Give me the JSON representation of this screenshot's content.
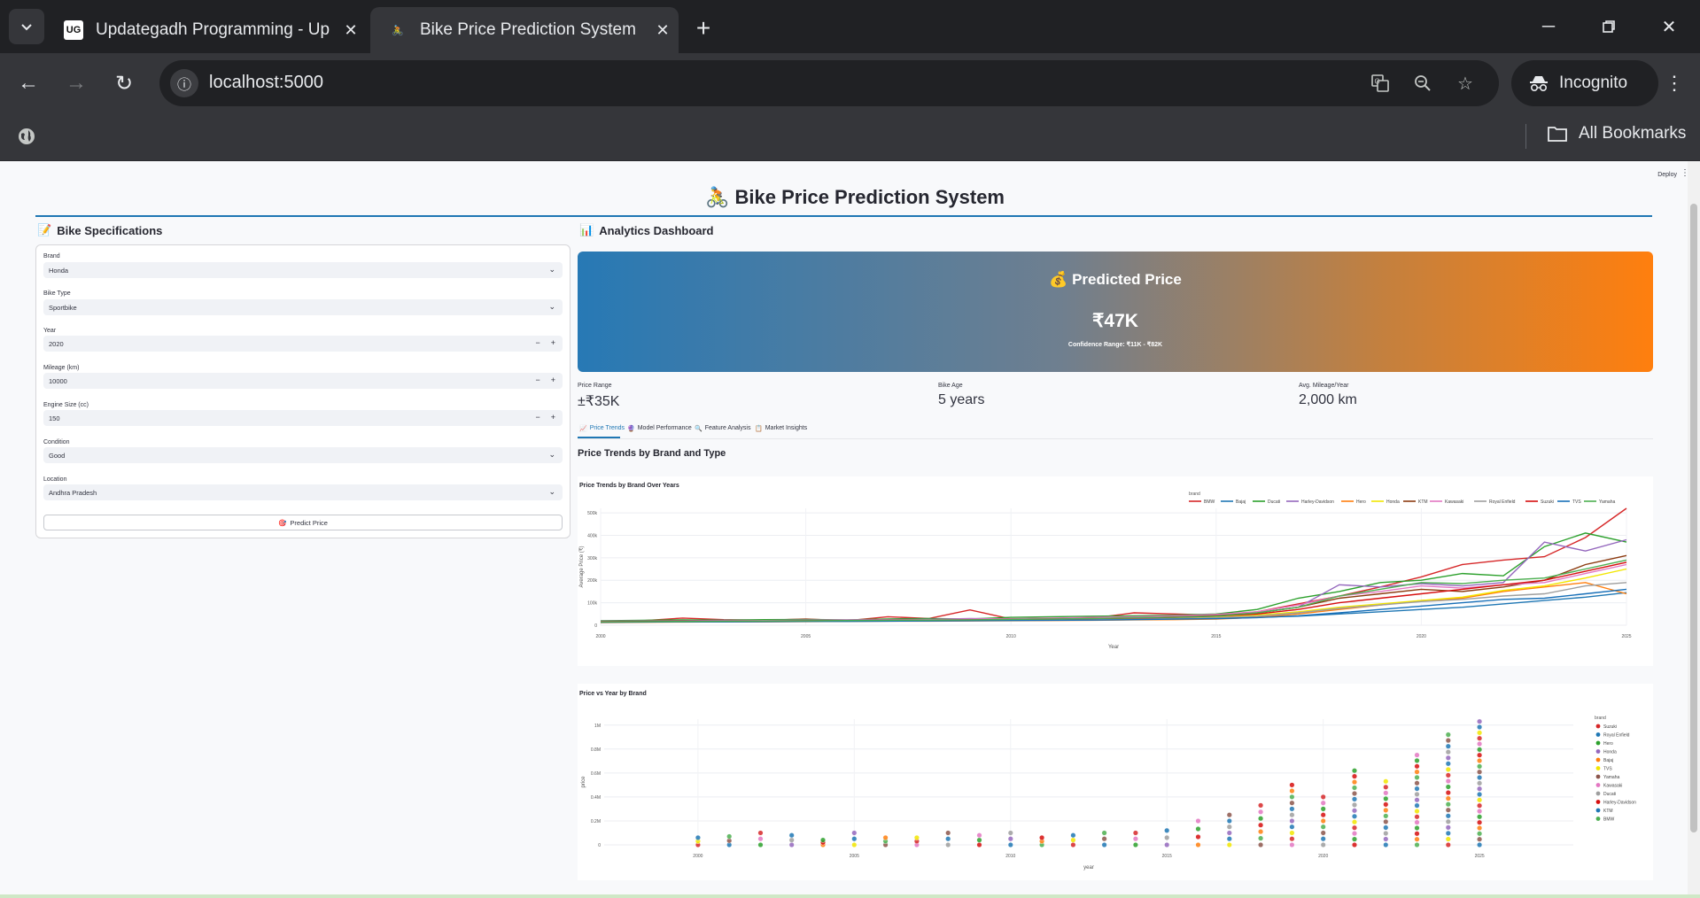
{
  "browser": {
    "tabs": [
      {
        "title": "Updategadh Programming - Up",
        "favicon": "UG",
        "active": false
      },
      {
        "title": "Bike Price Prediction System",
        "favicon": "🚴",
        "active": true
      }
    ],
    "url": "localhost:5000",
    "profile_label": "Incognito",
    "bookmarks_label": "All Bookmarks"
  },
  "app": {
    "deploy_label": "Deploy",
    "title": "Bike Price Prediction System",
    "title_icon": "🚴",
    "left_header": {
      "icon": "📝",
      "label": "Bike Specifications"
    },
    "right_header": {
      "icon": "📊",
      "label": "Analytics Dashboard"
    }
  },
  "form": {
    "brand": {
      "label": "Brand",
      "value": "Honda"
    },
    "bike_type": {
      "label": "Bike Type",
      "value": "Sportbike"
    },
    "year": {
      "label": "Year",
      "value": "2020"
    },
    "mileage": {
      "label": "Mileage (km)",
      "value": "10000"
    },
    "engine": {
      "label": "Engine Size (cc)",
      "value": "150"
    },
    "condition": {
      "label": "Condition",
      "value": "Good"
    },
    "location": {
      "label": "Location",
      "value": "Andhra Pradesh"
    },
    "predict_button": {
      "icon": "🎯",
      "label": "Predict Price"
    }
  },
  "prediction": {
    "icon": "💰",
    "title": "Predicted Price",
    "value": "₹47K",
    "confidence": "Confidence Range: ₹11K - ₹82K"
  },
  "metrics": [
    {
      "label": "Price Range",
      "value": "±₹35K"
    },
    {
      "label": "Bike Age",
      "value": "5 years"
    },
    {
      "label": "Avg. Mileage/Year",
      "value": "2,000 km"
    }
  ],
  "dashboard_tabs": [
    {
      "icon": "📈",
      "label": "Price Trends",
      "active": true
    },
    {
      "icon": "🔮",
      "label": "Model Performance",
      "active": false
    },
    {
      "icon": "🔍",
      "label": "Feature Analysis",
      "active": false
    },
    {
      "icon": "📋",
      "label": "Market Insights",
      "active": false
    }
  ],
  "section_title": "Price Trends by Brand and Type",
  "chart_data": [
    {
      "type": "line",
      "title": "Price Trends by Brand Over Years",
      "xlabel": "Year",
      "ylabel": "Average Price (₹)",
      "xlim": [
        2000,
        2025
      ],
      "ylim": [
        0,
        520000
      ],
      "x_ticks": [
        2000,
        2005,
        2010,
        2015,
        2020,
        2025
      ],
      "y_ticks": [
        {
          "v": 0,
          "t": "0"
        },
        {
          "v": 100000,
          "t": "100k"
        },
        {
          "v": 200000,
          "t": "200k"
        },
        {
          "v": 300000,
          "t": "300k"
        },
        {
          "v": 400000,
          "t": "400k"
        },
        {
          "v": 500000,
          "t": "500k"
        }
      ],
      "grid": true,
      "legend_title": "brand",
      "legend_position": "top",
      "x": [
        2000,
        2001,
        2002,
        2003,
        2004,
        2005,
        2006,
        2007,
        2008,
        2009,
        2010,
        2011,
        2012,
        2013,
        2014,
        2015,
        2016,
        2017,
        2018,
        2019,
        2020,
        2021,
        2022,
        2023,
        2024,
        2025
      ],
      "series": [
        {
          "name": "BMW",
          "color": "#d62728",
          "values": [
            18000,
            20000,
            32000,
            25000,
            22000,
            28000,
            20000,
            38000,
            30000,
            68000,
            28000,
            30000,
            32000,
            55000,
            50000,
            45000,
            60000,
            95000,
            130000,
            170000,
            215000,
            270000,
            290000,
            305000,
            390000,
            520000
          ]
        },
        {
          "name": "Bajaj",
          "color": "#1f77b4",
          "values": [
            15000,
            16000,
            17000,
            18000,
            18000,
            19000,
            20000,
            20000,
            21000,
            22000,
            23000,
            24000,
            25000,
            26000,
            28000,
            30000,
            35000,
            40000,
            50000,
            60000,
            70000,
            80000,
            95000,
            110000,
            125000,
            145000
          ]
        },
        {
          "name": "Ducati",
          "color": "#2ca02c",
          "values": [
            20000,
            22000,
            24000,
            23000,
            25000,
            26000,
            24000,
            28000,
            30000,
            28000,
            35000,
            38000,
            40000,
            42000,
            45000,
            50000,
            70000,
            120000,
            150000,
            190000,
            200000,
            230000,
            220000,
            350000,
            410000,
            370000
          ]
        },
        {
          "name": "Harley-Davidson",
          "color": "#9467bd",
          "values": [
            18000,
            19000,
            20000,
            22000,
            21000,
            23000,
            24000,
            25000,
            26000,
            30000,
            28000,
            29000,
            32000,
            35000,
            38000,
            42000,
            55000,
            80000,
            180000,
            170000,
            185000,
            175000,
            190000,
            370000,
            330000,
            380000
          ]
        },
        {
          "name": "Hero",
          "color": "#ff7f0e",
          "values": [
            12000,
            13000,
            14000,
            15000,
            15000,
            16000,
            17000,
            18000,
            18000,
            19000,
            20000,
            21000,
            22000,
            24000,
            25000,
            27000,
            35000,
            50000,
            70000,
            90000,
            110000,
            120000,
            150000,
            170000,
            190000,
            140000
          ]
        },
        {
          "name": "Honda",
          "color": "#f2e600",
          "values": [
            14000,
            15000,
            16000,
            16000,
            17000,
            18000,
            18000,
            19000,
            20000,
            21000,
            22000,
            23000,
            25000,
            27000,
            30000,
            35000,
            45000,
            60000,
            80000,
            95000,
            110000,
            125000,
            155000,
            175000,
            210000,
            250000
          ]
        },
        {
          "name": "KTM",
          "color": "#8c3b10",
          "values": [
            16000,
            17000,
            18000,
            19000,
            20000,
            21000,
            22000,
            23000,
            24000,
            26000,
            28000,
            30000,
            33000,
            36000,
            40000,
            45000,
            55000,
            80000,
            120000,
            140000,
            160000,
            150000,
            170000,
            200000,
            270000,
            310000
          ]
        },
        {
          "name": "Kawasaki",
          "color": "#e377c2",
          "values": [
            17000,
            18000,
            19000,
            20000,
            21000,
            22000,
            23000,
            24000,
            25000,
            27000,
            29000,
            32000,
            35000,
            38000,
            42000,
            48000,
            60000,
            90000,
            130000,
            150000,
            175000,
            165000,
            180000,
            190000,
            230000,
            270000
          ]
        },
        {
          "name": "Royal Enfield",
          "color": "#9e9e9e",
          "values": [
            15000,
            16000,
            17000,
            17000,
            18000,
            19000,
            20000,
            21000,
            22000,
            23000,
            24000,
            25000,
            26000,
            28000,
            30000,
            33000,
            40000,
            55000,
            75000,
            90000,
            105000,
            115000,
            130000,
            140000,
            175000,
            190000
          ]
        },
        {
          "name": "Suzuki",
          "color": "#d60e0e",
          "values": [
            16000,
            17000,
            18000,
            18000,
            19000,
            20000,
            21000,
            22000,
            23000,
            24000,
            26000,
            28000,
            30000,
            32000,
            35000,
            40000,
            50000,
            70000,
            100000,
            120000,
            140000,
            160000,
            180000,
            200000,
            240000,
            280000
          ]
        },
        {
          "name": "TVS",
          "color": "#176fb8",
          "values": [
            13000,
            14000,
            15000,
            15000,
            16000,
            17000,
            17000,
            18000,
            19000,
            20000,
            21000,
            22000,
            23000,
            25000,
            27000,
            29000,
            34000,
            42000,
            55000,
            70000,
            85000,
            100000,
            115000,
            120000,
            140000,
            160000
          ]
        },
        {
          "name": "Yamaha",
          "color": "#4caf50",
          "values": [
            15000,
            16000,
            17000,
            18000,
            19000,
            20000,
            21000,
            22000,
            23000,
            24000,
            26000,
            28000,
            30000,
            33000,
            36000,
            40000,
            55000,
            80000,
            130000,
            160000,
            190000,
            185000,
            200000,
            210000,
            250000,
            290000
          ]
        }
      ]
    },
    {
      "type": "scatter",
      "title": "Price vs Year by Brand",
      "xlabel": "year",
      "ylabel": "price",
      "xlim": [
        1997,
        2028
      ],
      "ylim": [
        0,
        1050000
      ],
      "x_ticks": [
        2000,
        2005,
        2010,
        2015,
        2020,
        2025
      ],
      "y_ticks": [
        {
          "v": 0,
          "t": "0"
        },
        {
          "v": 200000,
          "t": "0.2M"
        },
        {
          "v": 400000,
          "t": "0.4M"
        },
        {
          "v": 600000,
          "t": "0.6M"
        },
        {
          "v": 800000,
          "t": "0.8M"
        },
        {
          "v": 1000000,
          "t": "1M"
        }
      ],
      "grid": true,
      "legend_title": "brand",
      "legend_position": "right",
      "series": [
        {
          "name": "Suzuki",
          "color": "#d62728"
        },
        {
          "name": "Royal Enfield",
          "color": "#1f77b4"
        },
        {
          "name": "Hero",
          "color": "#2ca02c"
        },
        {
          "name": "Honda",
          "color": "#9467bd"
        },
        {
          "name": "Bajaj",
          "color": "#ff7f0e"
        },
        {
          "name": "TVS",
          "color": "#f2e600"
        },
        {
          "name": "Yamaha",
          "color": "#8c564b"
        },
        {
          "name": "Kawasaki",
          "color": "#e377c2"
        },
        {
          "name": "Ducati",
          "color": "#9e9e9e"
        },
        {
          "name": "Harley-Davidson",
          "color": "#d60e0e"
        },
        {
          "name": "KTM",
          "color": "#1f77b4"
        },
        {
          "name": "BMW",
          "color": "#4caf50"
        }
      ],
      "year_max_price": [
        {
          "year": 2000,
          "max": 60000
        },
        {
          "year": 2001,
          "max": 70000
        },
        {
          "year": 2002,
          "max": 100000
        },
        {
          "year": 2003,
          "max": 80000
        },
        {
          "year": 2004,
          "max": 40000
        },
        {
          "year": 2005,
          "max": 100000
        },
        {
          "year": 2006,
          "max": 60000
        },
        {
          "year": 2007,
          "max": 60000
        },
        {
          "year": 2008,
          "max": 100000
        },
        {
          "year": 2009,
          "max": 80000
        },
        {
          "year": 2010,
          "max": 100000
        },
        {
          "year": 2011,
          "max": 60000
        },
        {
          "year": 2012,
          "max": 80000
        },
        {
          "year": 2013,
          "max": 100000
        },
        {
          "year": 2014,
          "max": 100000
        },
        {
          "year": 2015,
          "max": 120000
        },
        {
          "year": 2016,
          "max": 200000
        },
        {
          "year": 2017,
          "max": 250000
        },
        {
          "year": 2018,
          "max": 330000
        },
        {
          "year": 2019,
          "max": 500000
        },
        {
          "year": 2020,
          "max": 400000
        },
        {
          "year": 2021,
          "max": 620000
        },
        {
          "year": 2022,
          "max": 530000
        },
        {
          "year": 2023,
          "max": 750000
        },
        {
          "year": 2024,
          "max": 920000
        },
        {
          "year": 2025,
          "max": 1030000
        }
      ]
    }
  ]
}
